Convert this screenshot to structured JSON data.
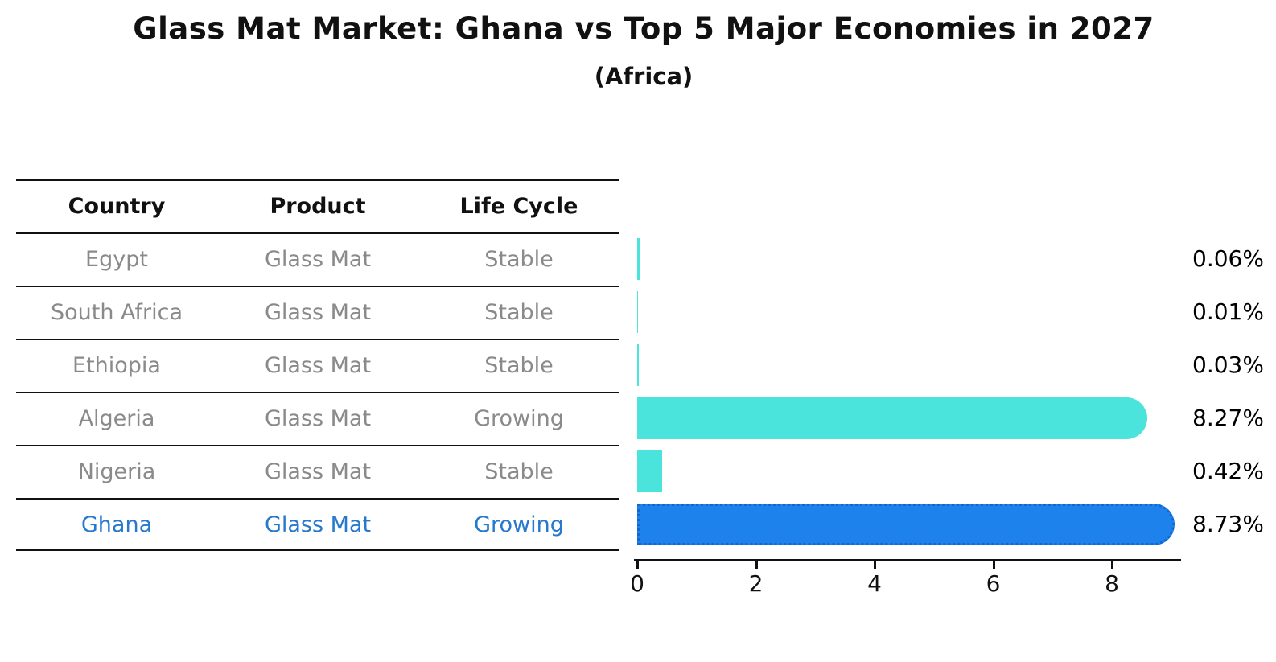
{
  "title": "Glass Mat Market: Ghana vs Top 5 Major Economies in 2027",
  "subtitle": "(Africa)",
  "table": {
    "headers": {
      "country": "Country",
      "product": "Product",
      "life_cycle": "Life Cycle"
    },
    "rows": [
      {
        "country": "Egypt",
        "product": "Glass Mat",
        "life_cycle": "Stable"
      },
      {
        "country": "South Africa",
        "product": "Glass Mat",
        "life_cycle": "Stable"
      },
      {
        "country": "Ethiopia",
        "product": "Glass Mat",
        "life_cycle": "Stable"
      },
      {
        "country": "Algeria",
        "product": "Glass Mat",
        "life_cycle": "Growing"
      },
      {
        "country": "Nigeria",
        "product": "Glass Mat",
        "life_cycle": "Stable"
      },
      {
        "country": "Ghana",
        "product": "Glass Mat",
        "life_cycle": "Growing"
      }
    ],
    "highlighted_row": "Ghana",
    "highlight_text_color": "#2878cd"
  },
  "chart_data": {
    "type": "bar",
    "orientation": "horizontal",
    "categories": [
      "Egypt",
      "South Africa",
      "Ethiopia",
      "Algeria",
      "Nigeria",
      "Ghana"
    ],
    "values": [
      0.06,
      0.01,
      0.03,
      8.27,
      0.42,
      8.73
    ],
    "value_labels": [
      "0.06%",
      "0.01%",
      "0.03%",
      "8.27%",
      "0.42%",
      "8.73%"
    ],
    "x_ticks": [
      "0",
      "2",
      "4",
      "6",
      "8"
    ],
    "x_tick_values": [
      0,
      2,
      4,
      6,
      8
    ],
    "xlim": [
      0,
      9.2
    ],
    "grid": false,
    "legend": "none",
    "bar_color": "#4be4dc",
    "highlight_bar_color": "#1e82ec",
    "highlight_index": 5,
    "unit": "%"
  }
}
